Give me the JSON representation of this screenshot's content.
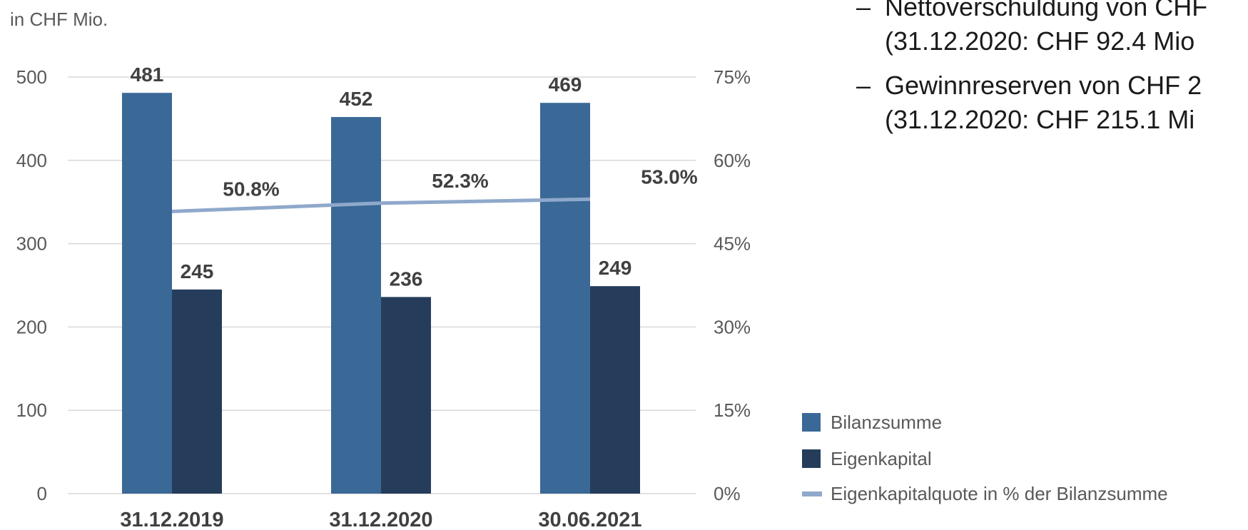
{
  "unit_label": "in CHF Mio.",
  "colors": {
    "bilanzsumme": "#3a6897",
    "eigenkapital": "#253d5b",
    "quote_line": "#8fa9cb",
    "grid": "#d9d9d9",
    "axis_text": "#595959",
    "label_text": "#404040"
  },
  "bullets": [
    {
      "dash": "–",
      "line1": "Nettoverschuldung von CHF",
      "line2": "(31.12.2020: CHF 92.4 Mio"
    },
    {
      "dash": "–",
      "line1": "Gewinnreserven von CHF 2",
      "line2": "(31.12.2020: CHF 215.1 Mi"
    }
  ],
  "chart_data": {
    "type": "bar",
    "categories": [
      "31.12.2019",
      "31.12.2020",
      "30.06.2021"
    ],
    "series": [
      {
        "name": "Bilanzsumme",
        "type": "bar",
        "axis": "left",
        "values": [
          481,
          452,
          469
        ],
        "labels": [
          "481",
          "452",
          "469"
        ]
      },
      {
        "name": "Eigenkapital",
        "type": "bar",
        "axis": "left",
        "values": [
          245,
          236,
          249
        ],
        "labels": [
          "245",
          "236",
          "249"
        ]
      },
      {
        "name": "Eigenkapitalquote in % der Bilanzsumme",
        "type": "line",
        "axis": "right",
        "values": [
          50.8,
          52.3,
          53.0
        ],
        "labels": [
          "50.8%",
          "52.3%",
          "53.0%"
        ]
      }
    ],
    "y_left": {
      "min": 0,
      "max": 500,
      "ticks": [
        "0",
        "100",
        "200",
        "300",
        "400",
        "500"
      ]
    },
    "y_right": {
      "min": 0,
      "max": 75,
      "ticks": [
        "0%",
        "15%",
        "30%",
        "45%",
        "60%",
        "75%"
      ]
    },
    "grid": true,
    "legend_position": "bottom-right"
  }
}
